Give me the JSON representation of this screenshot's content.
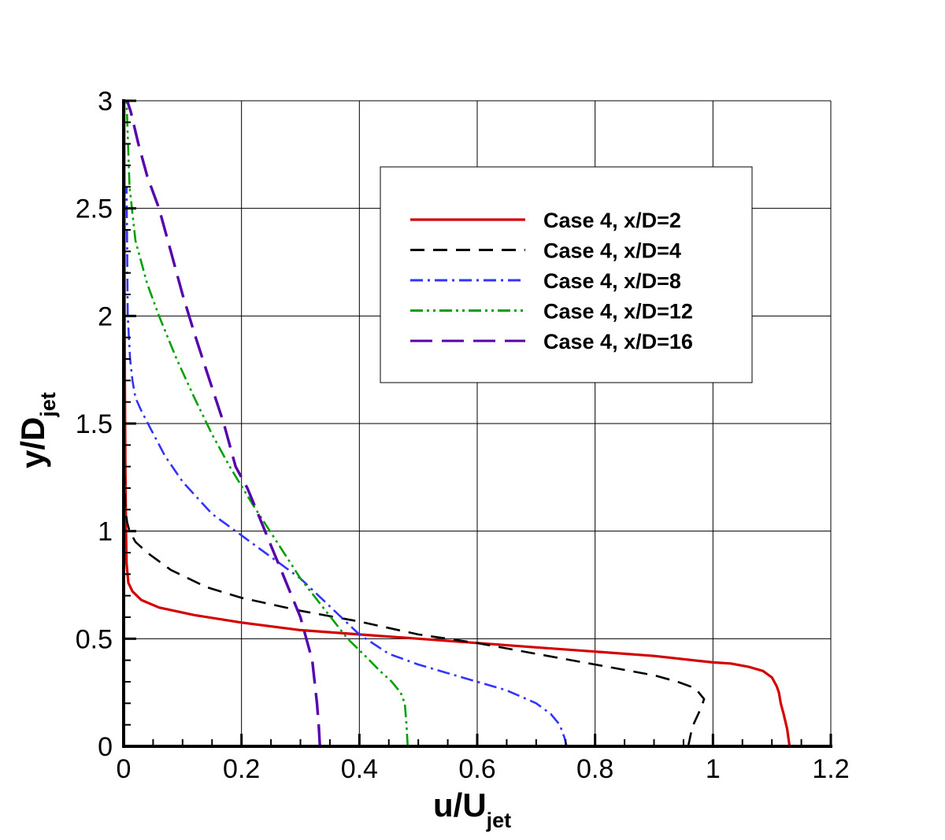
{
  "chart_data": {
    "type": "line",
    "title": "",
    "xlabel": "u/U",
    "xlabel_sub": "jet",
    "ylabel": "y/D",
    "ylabel_sub": "jet",
    "xlim": [
      0,
      1.2
    ],
    "ylim": [
      0,
      3
    ],
    "xticks": [
      0,
      0.2,
      0.4,
      0.6,
      0.8,
      1.0,
      1.2
    ],
    "xtick_labels": [
      "0",
      "0.2",
      "0.4",
      "0.6",
      "0.8",
      "1",
      "1.2"
    ],
    "yticks": [
      0,
      0.5,
      1.0,
      1.5,
      2.0,
      2.5,
      3.0
    ],
    "ytick_labels": [
      "0",
      "0.5",
      "1",
      "1.5",
      "2",
      "2.5",
      "3"
    ],
    "grid": true,
    "legend_position": "upper-right",
    "series": [
      {
        "name": "Case 4, x/D=2",
        "color": "#d40000",
        "dash": "solid",
        "x": [
          1.13,
          1.126,
          1.12,
          1.115,
          1.112,
          1.108,
          1.1,
          1.085,
          1.06,
          1.03,
          1.0,
          0.9,
          0.8,
          0.7,
          0.6,
          0.5,
          0.4,
          0.3,
          0.2,
          0.12,
          0.06,
          0.03,
          0.015,
          0.008,
          0.005,
          0.004,
          0.003,
          0.002,
          0.0015,
          0.001
        ],
        "y": [
          0,
          0.08,
          0.15,
          0.2,
          0.25,
          0.28,
          0.32,
          0.35,
          0.37,
          0.385,
          0.39,
          0.42,
          0.44,
          0.46,
          0.48,
          0.5,
          0.52,
          0.54,
          0.575,
          0.61,
          0.645,
          0.68,
          0.72,
          0.76,
          0.85,
          1.0,
          1.3,
          1.7,
          2.2,
          3.0
        ]
      },
      {
        "name": "Case 4, x/D=4",
        "color": "#000000",
        "dash": "dash",
        "x": [
          0.958,
          0.965,
          0.98,
          0.985,
          0.97,
          0.94,
          0.9,
          0.8,
          0.7,
          0.6,
          0.5,
          0.4,
          0.3,
          0.2,
          0.14,
          0.08,
          0.04,
          0.02,
          0.01,
          0.006,
          0.003,
          0.002,
          0.001
        ],
        "y": [
          0,
          0.09,
          0.18,
          0.22,
          0.27,
          0.3,
          0.33,
          0.38,
          0.43,
          0.48,
          0.52,
          0.58,
          0.63,
          0.69,
          0.74,
          0.82,
          0.9,
          0.95,
          1.0,
          1.04,
          1.1,
          1.2,
          1.3
        ]
      },
      {
        "name": "Case 4, x/D=8",
        "color": "#3333ff",
        "dash": "dashdot",
        "x": [
          0.752,
          0.748,
          0.74,
          0.725,
          0.7,
          0.65,
          0.6,
          0.55,
          0.5,
          0.45,
          0.4,
          0.35,
          0.3,
          0.25,
          0.2,
          0.15,
          0.1,
          0.07,
          0.045,
          0.03,
          0.02,
          0.015,
          0.011,
          0.009,
          0.007,
          0.006,
          0.005
        ],
        "y": [
          0,
          0.04,
          0.1,
          0.15,
          0.2,
          0.26,
          0.3,
          0.34,
          0.38,
          0.43,
          0.52,
          0.65,
          0.78,
          0.88,
          0.98,
          1.08,
          1.23,
          1.35,
          1.48,
          1.56,
          1.62,
          1.7,
          1.8,
          1.9,
          2.0,
          2.3,
          2.6
        ]
      },
      {
        "name": "Case 4, x/D=12",
        "color": "#00a000",
        "dash": "dashdotdot",
        "x": [
          0.482,
          0.48,
          0.477,
          0.47,
          0.455,
          0.435,
          0.41,
          0.38,
          0.34,
          0.3,
          0.26,
          0.22,
          0.18,
          0.15,
          0.12,
          0.09,
          0.06,
          0.04,
          0.02,
          0.01,
          0.005
        ],
        "y": [
          0,
          0.1,
          0.2,
          0.25,
          0.3,
          0.35,
          0.42,
          0.5,
          0.64,
          0.78,
          0.95,
          1.12,
          1.3,
          1.45,
          1.62,
          1.8,
          2.0,
          2.15,
          2.35,
          2.6,
          3.0
        ]
      },
      {
        "name": "Case 4, x/D=16",
        "color": "#5500aa",
        "dash": "longdash",
        "x": [
          0.333,
          0.331,
          0.328,
          0.324,
          0.32,
          0.31,
          0.3,
          0.285,
          0.27,
          0.255,
          0.24,
          0.225,
          0.21,
          0.19,
          0.17,
          0.14,
          0.12,
          0.1,
          0.08,
          0.06,
          0.04,
          0.025,
          0.012,
          0.006
        ],
        "y": [
          0,
          0.1,
          0.2,
          0.3,
          0.4,
          0.5,
          0.6,
          0.7,
          0.8,
          0.9,
          1.0,
          1.1,
          1.2,
          1.3,
          1.5,
          1.75,
          1.92,
          2.1,
          2.3,
          2.5,
          2.65,
          2.8,
          2.95,
          3.0
        ]
      }
    ]
  }
}
